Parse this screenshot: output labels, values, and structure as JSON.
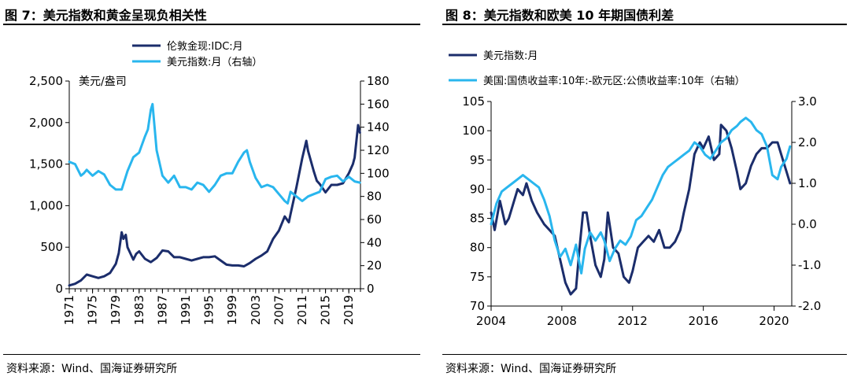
{
  "colors": {
    "dark": "#1b2d6b",
    "light": "#29b6ee"
  },
  "left": {
    "title": "图 7：美元指数和黄金呈现负相关性",
    "source": "资料来源：Wind、国海证券研究所"
  },
  "right": {
    "title": "图 8：美元指数和欧美 10 年期国债利差",
    "source": "资料来源：Wind、国海证券研究所"
  },
  "chart_data": [
    {
      "type": "line",
      "title": "图 7：美元指数和黄金呈现负相关性",
      "unit_label": "美元/盎司",
      "xlim": [
        1971,
        2021
      ],
      "x_ticks": [
        "1971",
        "1975",
        "1979",
        "1983",
        "1987",
        "1991",
        "1995",
        "1999",
        "2003",
        "2007",
        "2011",
        "2015",
        "2019"
      ],
      "y_left": {
        "lim": [
          0,
          2500
        ],
        "ticks": [
          "0",
          "500",
          "1,000",
          "1,500",
          "2,000",
          "2,500"
        ]
      },
      "y_right": {
        "lim": [
          0,
          180
        ],
        "ticks": [
          "0",
          "20",
          "40",
          "60",
          "80",
          "100",
          "120",
          "140",
          "160",
          "180"
        ]
      },
      "legend": [
        "伦敦金现:IDC:月",
        "美元指数:月（右轴）"
      ],
      "series": [
        {
          "name": "伦敦金现:IDC:月",
          "axis": "left",
          "color": "dark",
          "x": [
            1971,
            1972,
            1973,
            1974,
            1975,
            1976,
            1977,
            1978,
            1979,
            1979.5,
            1980,
            1980.3,
            1980.7,
            1981,
            1982,
            1982.5,
            1983,
            1984,
            1985,
            1986,
            1987,
            1988,
            1989,
            1990,
            1991,
            1992,
            1993,
            1994,
            1995,
            1996,
            1997,
            1998,
            1999,
            2000,
            2001,
            2002,
            2003,
            2004,
            2005,
            2006,
            2007,
            2008,
            2008.7,
            2009,
            2010,
            2011,
            2011.7,
            2012,
            2013,
            2013.5,
            2014,
            2015,
            2016,
            2017,
            2018,
            2019,
            2019.7,
            2020,
            2020.6,
            2020.9
          ],
          "y": [
            40,
            60,
            100,
            170,
            150,
            130,
            150,
            190,
            300,
            430,
            680,
            600,
            650,
            500,
            350,
            420,
            450,
            360,
            320,
            370,
            460,
            450,
            380,
            380,
            360,
            340,
            360,
            380,
            380,
            390,
            340,
            290,
            280,
            280,
            270,
            310,
            360,
            400,
            450,
            600,
            700,
            870,
            800,
            900,
            1220,
            1570,
            1780,
            1660,
            1410,
            1300,
            1260,
            1160,
            1250,
            1250,
            1270,
            1390,
            1500,
            1580,
            1970,
            1880
          ]
        },
        {
          "name": "美元指数:月（右轴）",
          "axis": "right",
          "color": "light",
          "x": [
            1971,
            1972,
            1973,
            1973.5,
            1974,
            1975,
            1976,
            1977,
            1978,
            1979,
            1980,
            1981,
            1982,
            1983,
            1984,
            1984.5,
            1985,
            1985.3,
            1986,
            1987,
            1988,
            1989,
            1990,
            1991,
            1992,
            1993,
            1994,
            1995,
            1996,
            1997,
            1998,
            1999,
            2000,
            2001,
            2001.5,
            2002,
            2003,
            2004,
            2005,
            2006,
            2007,
            2008,
            2008.5,
            2009,
            2010,
            2011,
            2012,
            2013,
            2014,
            2015,
            2016,
            2017,
            2018,
            2019,
            2020,
            2020.9
          ],
          "y": [
            110,
            108,
            98,
            100,
            103,
            98,
            102,
            99,
            90,
            86,
            86,
            102,
            114,
            118,
            132,
            138,
            155,
            160,
            120,
            98,
            92,
            98,
            88,
            88,
            86,
            92,
            90,
            84,
            90,
            98,
            100,
            100,
            110,
            118,
            120,
            110,
            96,
            88,
            90,
            88,
            82,
            76,
            74,
            84,
            80,
            76,
            80,
            82,
            84,
            95,
            97,
            98,
            93,
            97,
            93,
            92
          ]
        }
      ]
    },
    {
      "type": "line",
      "title": "图 8：美元指数和欧美 10 年期国债利差",
      "xlim": [
        2004,
        2021
      ],
      "x_ticks": [
        "2004",
        "2008",
        "2012",
        "2016",
        "2020"
      ],
      "y_left": {
        "lim": [
          70,
          105
        ],
        "ticks": [
          "70",
          "75",
          "80",
          "85",
          "90",
          "95",
          "100",
          "105"
        ]
      },
      "y_right": {
        "lim": [
          -2.0,
          3.0
        ],
        "ticks": [
          "-2.0",
          "-1.0",
          "0.0",
          "1.0",
          "2.0",
          "3.0"
        ]
      },
      "legend": [
        "美元指数:月",
        "美国:国债收益率:10年:-欧元区:公债收益率:10年（右轴）"
      ],
      "series": [
        {
          "name": "美元指数:月",
          "axis": "left",
          "color": "dark",
          "x": [
            2004,
            2004.2,
            2004.5,
            2004.8,
            2005,
            2005.3,
            2005.5,
            2005.8,
            2006,
            2006.3,
            2006.6,
            2007,
            2007.3,
            2007.6,
            2007.9,
            2008.2,
            2008.5,
            2008.8,
            2009,
            2009.2,
            2009.4,
            2009.6,
            2009.9,
            2010.2,
            2010.4,
            2010.6,
            2010.9,
            2011.2,
            2011.5,
            2011.8,
            2012,
            2012.3,
            2012.6,
            2012.9,
            2013.2,
            2013.5,
            2013.8,
            2014.1,
            2014.4,
            2014.7,
            2014.9,
            2015.2,
            2015.5,
            2015.8,
            2016,
            2016.3,
            2016.6,
            2016.9,
            2017,
            2017.3,
            2017.6,
            2017.9,
            2018.1,
            2018.4,
            2018.7,
            2019,
            2019.3,
            2019.6,
            2019.9,
            2020.2,
            2020.4,
            2020.7,
            2020.9
          ],
          "y": [
            86,
            83,
            88,
            84,
            85,
            88,
            90,
            89,
            91,
            88,
            86,
            84,
            83,
            82,
            78,
            74,
            72,
            73,
            80,
            86,
            86,
            82,
            77,
            75,
            78,
            86,
            80,
            79,
            75,
            74,
            76,
            80,
            81,
            82,
            81,
            83,
            80,
            80,
            81,
            83,
            86,
            90,
            96,
            98,
            97,
            99,
            95,
            96,
            101,
            100,
            97,
            93,
            90,
            91,
            94,
            96,
            97,
            97,
            98,
            98,
            96,
            93,
            91
          ]
        },
        {
          "name": "美国:国债收益率:10年:-欧元区:公债收益率:10年（右轴）",
          "axis": "right",
          "color": "light",
          "x": [
            2004,
            2004.3,
            2004.6,
            2004.9,
            2005.2,
            2005.5,
            2005.8,
            2006.1,
            2006.4,
            2006.7,
            2007,
            2007.3,
            2007.6,
            2007.9,
            2008.2,
            2008.5,
            2008.8,
            2009.1,
            2009.3,
            2009.6,
            2009.9,
            2010.2,
            2010.4,
            2010.7,
            2011,
            2011.3,
            2011.6,
            2011.9,
            2012.2,
            2012.5,
            2012.8,
            2013.1,
            2013.4,
            2013.7,
            2014,
            2014.3,
            2014.6,
            2014.9,
            2015.2,
            2015.5,
            2015.8,
            2016.1,
            2016.4,
            2016.7,
            2017,
            2017.3,
            2017.6,
            2017.9,
            2018.1,
            2018.4,
            2018.7,
            2019,
            2019.3,
            2019.6,
            2019.9,
            2020.2,
            2020.4,
            2020.7,
            2020.9
          ],
          "y": [
            0.0,
            0.5,
            0.8,
            0.9,
            1.0,
            1.1,
            1.2,
            1.1,
            1.0,
            0.9,
            0.6,
            0.2,
            -0.4,
            -0.8,
            -0.6,
            -1.0,
            -0.5,
            -1.2,
            -0.6,
            -0.2,
            -0.4,
            -0.2,
            -0.4,
            -0.9,
            -0.6,
            -0.4,
            -0.5,
            -0.3,
            0.1,
            0.2,
            0.4,
            0.6,
            0.9,
            1.2,
            1.4,
            1.5,
            1.6,
            1.7,
            1.8,
            2.0,
            1.9,
            1.7,
            1.6,
            1.8,
            2.0,
            2.1,
            2.3,
            2.4,
            2.5,
            2.6,
            2.5,
            2.3,
            2.2,
            1.9,
            1.2,
            1.1,
            1.4,
            1.6,
            1.9
          ]
        }
      ]
    }
  ]
}
